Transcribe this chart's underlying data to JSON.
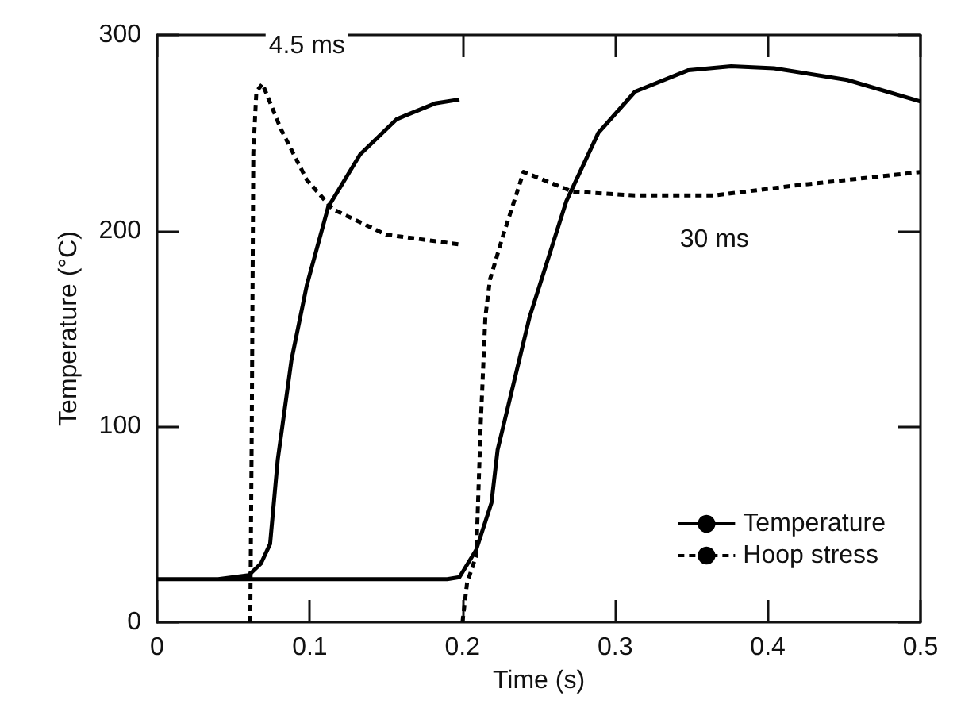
{
  "chart_data": {
    "type": "line",
    "xlabel": "Time (s)",
    "ylabel": "Temperature (°C)",
    "xlim": [
      0,
      0.5
    ],
    "xticks": [
      0,
      0.1,
      0.2,
      0.3,
      0.4,
      0.5
    ],
    "ylim": [
      0,
      300
    ],
    "yticks": [
      0,
      100,
      200,
      300
    ],
    "grid": false,
    "legend": "bottom right",
    "marker": "none",
    "series": [
      {
        "name": "Temperature",
        "color": "#000000",
        "line_style": "solid",
        "x": [
          0,
          0.04,
          0.06,
          0.068,
          0.074,
          0.079,
          0.088,
          0.098,
          0.112,
          0.133,
          0.157,
          0.182,
          0.198,
          null,
          0,
          0.1,
          0.19,
          0.198,
          0.209,
          0.219,
          0.223,
          0.244,
          0.268,
          0.289,
          0.313,
          0.348,
          0.376,
          0.404,
          0.452,
          0.5
        ],
        "values": [
          22,
          22,
          24,
          30,
          40,
          83,
          134,
          172,
          212,
          239,
          257,
          265,
          267,
          null,
          22,
          22,
          22,
          23,
          37,
          61,
          88,
          156,
          215,
          250,
          271,
          282,
          284,
          283,
          277,
          266
        ]
      },
      {
        "name": "Hoop stress",
        "color": "#000000",
        "line_style": "dashed",
        "x": [
          0.061,
          0.062,
          0.063,
          0.065,
          0.069,
          0.081,
          0.098,
          0.115,
          0.15,
          0.198,
          null,
          0.2,
          0.203,
          0.209,
          0.212,
          0.215,
          0.218,
          0.226,
          0.24,
          0.272,
          0.313,
          0.365,
          0.417,
          0.5
        ],
        "values": [
          0,
          100,
          240,
          271,
          275,
          252,
          226,
          211,
          198,
          193,
          null,
          0,
          20,
          34,
          102,
          156,
          175,
          196,
          230,
          220,
          218,
          218,
          223,
          230
        ]
      }
    ],
    "annotations": [
      {
        "text": "4.5 ms",
        "x": 0.069,
        "y": 275
      },
      {
        "text": "30 ms",
        "x": 0.365,
        "y": 218
      }
    ]
  }
}
